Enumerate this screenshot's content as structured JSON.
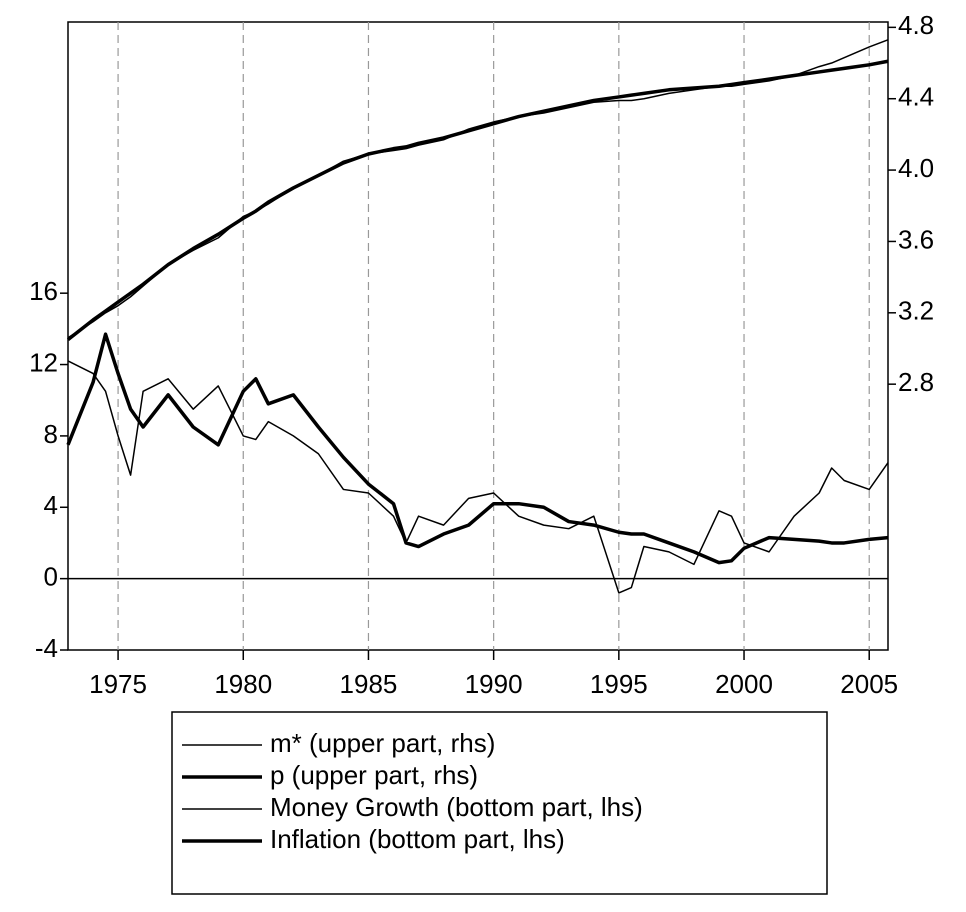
{
  "chart_data": {
    "type": "line",
    "x": [
      1973,
      1974,
      1974.5,
      1975,
      1975.5,
      1976,
      1977,
      1978,
      1979,
      1980,
      1980.5,
      1981,
      1982,
      1983,
      1984,
      1985,
      1986,
      1986.5,
      1987,
      1988,
      1989,
      1990,
      1991,
      1992,
      1993,
      1994,
      1995,
      1995.5,
      1996,
      1997,
      1998,
      1999,
      1999.5,
      2000,
      2001,
      2002,
      2003,
      2003.5,
      2004,
      2005,
      2005.75
    ],
    "series": [
      {
        "name": "m* (upper part, rhs)",
        "color": "#000000",
        "width": 1.5,
        "axis": "y2",
        "values": [
          3.06,
          3.15,
          3.2,
          3.24,
          3.29,
          3.35,
          3.47,
          3.55,
          3.62,
          3.74,
          3.77,
          3.81,
          3.9,
          3.97,
          4.05,
          4.09,
          4.11,
          4.12,
          4.14,
          4.17,
          4.23,
          4.27,
          4.3,
          4.32,
          4.35,
          4.38,
          4.39,
          4.39,
          4.4,
          4.43,
          4.45,
          4.47,
          4.47,
          4.48,
          4.5,
          4.53,
          4.58,
          4.6,
          4.63,
          4.69,
          4.73
        ]
      },
      {
        "name": "p (upper part, rhs)",
        "color": "#000000",
        "width": 3.5,
        "axis": "y2",
        "values": [
          3.05,
          3.16,
          3.21,
          3.26,
          3.31,
          3.36,
          3.47,
          3.56,
          3.64,
          3.73,
          3.77,
          3.82,
          3.9,
          3.97,
          4.04,
          4.09,
          4.12,
          4.13,
          4.15,
          4.18,
          4.22,
          4.26,
          4.3,
          4.33,
          4.36,
          4.39,
          4.41,
          4.42,
          4.43,
          4.45,
          4.46,
          4.47,
          4.48,
          4.49,
          4.51,
          4.53,
          4.55,
          4.56,
          4.57,
          4.59,
          4.61
        ]
      },
      {
        "name": "Money Growth (bottom part, lhs)",
        "color": "#000000",
        "width": 1.5,
        "values": [
          12.2,
          11.5,
          10.5,
          8.0,
          5.8,
          10.5,
          11.2,
          9.5,
          10.8,
          8.0,
          7.8,
          8.8,
          8.0,
          7.0,
          5.0,
          4.8,
          3.5,
          2.0,
          3.5,
          3.0,
          4.5,
          4.8,
          3.5,
          3.0,
          2.8,
          3.5,
          -0.8,
          -0.5,
          1.8,
          1.5,
          0.8,
          3.8,
          3.5,
          2.0,
          1.5,
          3.5,
          4.8,
          6.2,
          5.5,
          5.0,
          6.5
        ]
      },
      {
        "name": "Inflation (bottom part, lhs)",
        "color": "#000000",
        "width": 3.5,
        "values": [
          7.5,
          11.0,
          13.7,
          11.5,
          9.5,
          8.5,
          10.3,
          8.5,
          7.5,
          10.5,
          11.2,
          9.8,
          10.3,
          8.5,
          6.8,
          5.3,
          4.2,
          2.0,
          1.8,
          2.5,
          3.0,
          4.2,
          4.2,
          4.0,
          3.2,
          3.0,
          2.6,
          2.5,
          2.5,
          2.0,
          1.5,
          0.9,
          1.0,
          1.7,
          2.3,
          2.2,
          2.1,
          2.0,
          2.0,
          2.2,
          2.3
        ]
      }
    ],
    "xlim": [
      1973,
      2005.75
    ],
    "xticks": [
      1975,
      1980,
      1985,
      1990,
      1995,
      2000,
      2005
    ],
    "ylim": [
      -4,
      31.2
    ],
    "yticks": [
      -4,
      0,
      4,
      8,
      12,
      16
    ],
    "y2lim": [
      1.31,
      4.83
    ],
    "y2ticks": [
      2.8,
      3.2,
      3.6,
      {
        "value": 4.0,
        "label": "4.0"
      },
      4.4,
      4.8
    ],
    "grid": "x",
    "zero_line": true,
    "legend": "bottom"
  }
}
